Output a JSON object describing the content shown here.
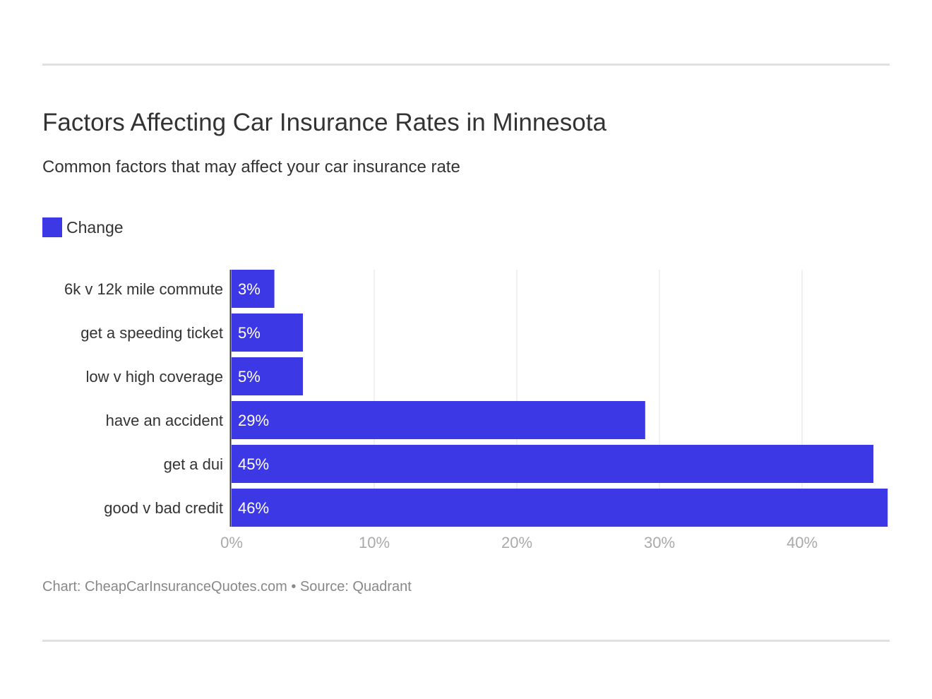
{
  "title": "Factors Affecting Car Insurance Rates in Minnesota",
  "subtitle": "Common factors that may affect your car insurance rate",
  "footer": "Chart: CheapCarInsuranceQuotes.com • Source: Quadrant",
  "colors": {
    "bar": "#3d38e6",
    "grid": "#e3e3e3",
    "axis": "#333333",
    "tick": "#aaaaaa"
  },
  "chart_data": {
    "type": "bar",
    "orientation": "horizontal",
    "title": "Factors Affecting Car Insurance Rates in Minnesota",
    "subtitle": "Common factors that may affect your car insurance rate",
    "categories": [
      "6k v 12k mile commute",
      "get a speeding ticket",
      "low v high coverage",
      "have an accident",
      "get a dui",
      "good v bad credit"
    ],
    "series": [
      {
        "name": "Change",
        "values": [
          3,
          5,
          5,
          29,
          45,
          46
        ]
      }
    ],
    "data_labels": [
      "3%",
      "5%",
      "5%",
      "29%",
      "45%",
      "46%"
    ],
    "xlim": [
      0,
      46
    ],
    "x_ticks": [
      0,
      10,
      20,
      30,
      40
    ],
    "x_tick_labels": [
      "0%",
      "10%",
      "20%",
      "30%",
      "40%"
    ],
    "grid": "vertical",
    "legend": "top-left"
  }
}
